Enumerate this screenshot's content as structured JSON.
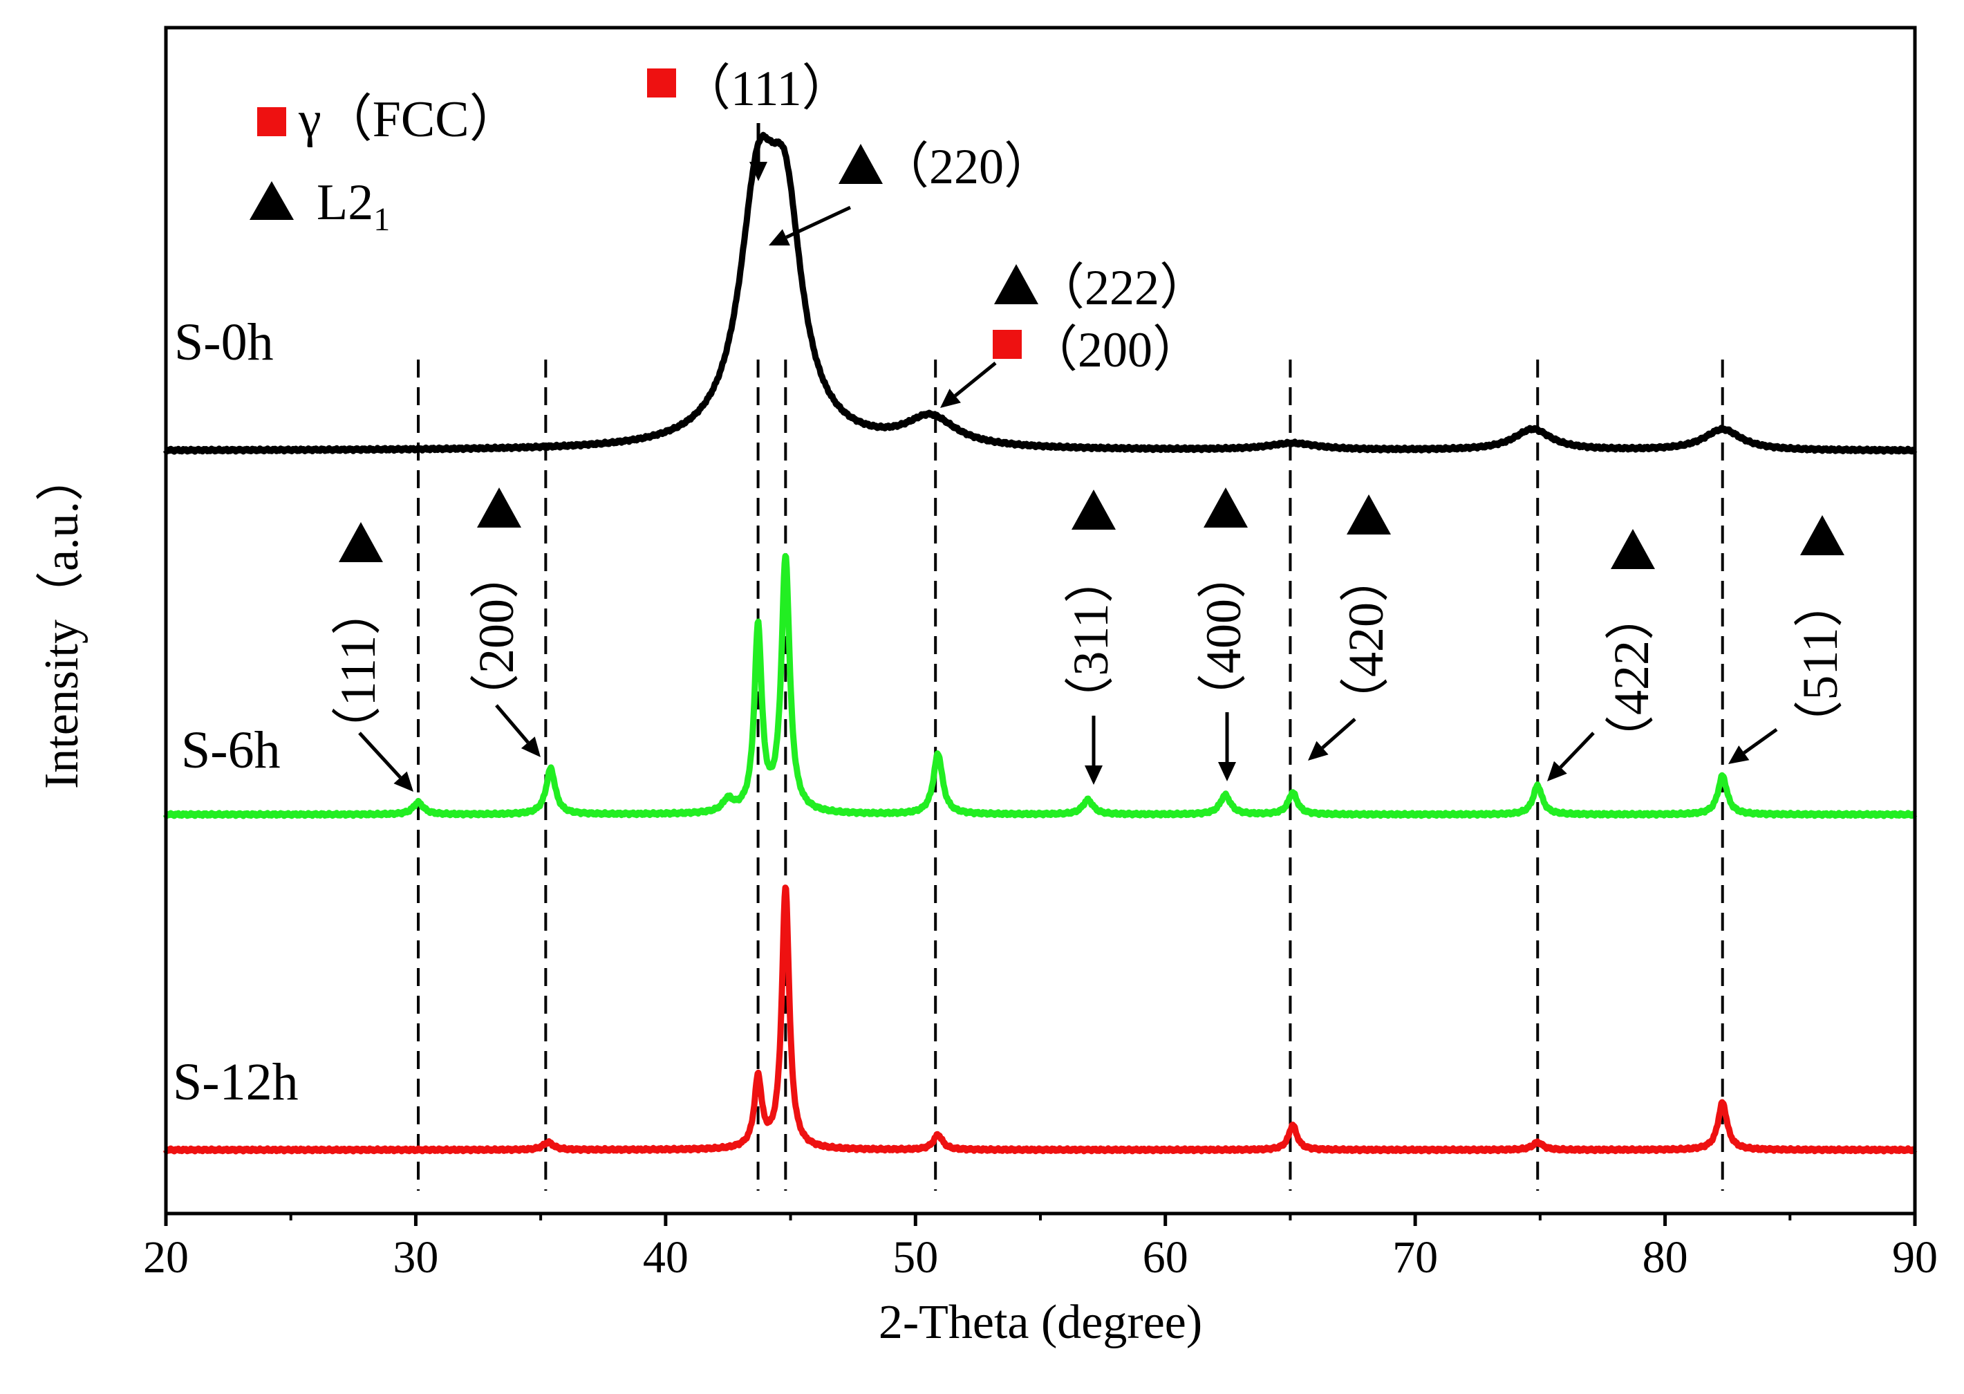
{
  "chart_data": {
    "type": "line",
    "title": "",
    "xlabel": "2-Theta (degree)",
    "ylabel": "Intensity（a.u.）",
    "xlim": [
      20,
      90
    ],
    "xticks": [
      20,
      30,
      40,
      50,
      60,
      70,
      80,
      90
    ],
    "yticks": [],
    "grid": false,
    "colors": {
      "S-0h": "#000000",
      "S-6h": "#22ee22",
      "S-12h": "#ee1111",
      "fcc_marker": "#ee1111",
      "l21_marker": "#000000"
    },
    "legend": {
      "placement": "top-left",
      "entries": [
        {
          "symbol": "square",
          "color": "#ee1111",
          "label": "γ（FCC）"
        },
        {
          "symbol": "triangle",
          "color": "#000000",
          "label": "L2",
          "subscript": "1"
        }
      ]
    },
    "series": [
      {
        "name": "S-0h",
        "label": "S-0h",
        "baseline": 0,
        "peaks": [
          {
            "x": 43.7,
            "h": 9.0,
            "w": 0.9
          },
          {
            "x": 44.8,
            "h": 7.6,
            "w": 0.8
          },
          {
            "x": 50.6,
            "h": 1.1,
            "w": 1.2
          },
          {
            "x": 65.1,
            "h": 0.25,
            "w": 1.2
          },
          {
            "x": 74.7,
            "h": 0.8,
            "w": 0.9
          },
          {
            "x": 82.3,
            "h": 0.8,
            "w": 0.9
          }
        ]
      },
      {
        "name": "S-6h",
        "label": "S-6h",
        "baseline": 0,
        "peaks": [
          {
            "x": 30.1,
            "h": 0.5,
            "w": 0.25
          },
          {
            "x": 35.4,
            "h": 1.9,
            "w": 0.22
          },
          {
            "x": 42.5,
            "h": 0.5,
            "w": 0.25
          },
          {
            "x": 43.7,
            "h": 7.6,
            "w": 0.18
          },
          {
            "x": 44.8,
            "h": 10.5,
            "w": 0.2
          },
          {
            "x": 50.9,
            "h": 2.5,
            "w": 0.22
          },
          {
            "x": 56.9,
            "h": 0.6,
            "w": 0.25
          },
          {
            "x": 62.4,
            "h": 0.8,
            "w": 0.25
          },
          {
            "x": 65.1,
            "h": 0.9,
            "w": 0.22
          },
          {
            "x": 74.9,
            "h": 1.2,
            "w": 0.22
          },
          {
            "x": 82.3,
            "h": 1.6,
            "w": 0.22
          }
        ]
      },
      {
        "name": "S-12h",
        "label": "S-12h",
        "baseline": 0,
        "peaks": [
          {
            "x": 35.3,
            "h": 0.3,
            "w": 0.25
          },
          {
            "x": 43.7,
            "h": 2.8,
            "w": 0.18
          },
          {
            "x": 44.8,
            "h": 10.5,
            "w": 0.18
          },
          {
            "x": 50.9,
            "h": 0.6,
            "w": 0.22
          },
          {
            "x": 65.1,
            "h": 1.0,
            "w": 0.2
          },
          {
            "x": 74.9,
            "h": 0.3,
            "w": 0.25
          },
          {
            "x": 82.3,
            "h": 1.9,
            "w": 0.22
          }
        ]
      }
    ],
    "reference_lines": [
      30.1,
      35.2,
      43.7,
      44.8,
      50.8,
      65.0,
      74.9,
      82.3
    ],
    "annotations": [
      {
        "phase": "FCC",
        "text": "（111）",
        "x": 43.7,
        "series": "S-0h"
      },
      {
        "phase": "L21",
        "text": "（220）",
        "x": 44.8,
        "series": "S-0h"
      },
      {
        "phase": "L21",
        "text": "（222）",
        "x": 50.6,
        "series": "S-0h"
      },
      {
        "phase": "FCC",
        "text": "（200）",
        "x": 50.6,
        "series": "S-0h"
      },
      {
        "phase": "L21",
        "text": "（111）",
        "x": 30.1,
        "series": "S-6h"
      },
      {
        "phase": "L21",
        "text": "（200）",
        "x": 35.4,
        "series": "S-6h"
      },
      {
        "phase": "L21",
        "text": "（311）",
        "x": 56.9,
        "series": "S-6h"
      },
      {
        "phase": "L21",
        "text": "（400）",
        "x": 62.4,
        "series": "S-6h"
      },
      {
        "phase": "L21",
        "text": "（420）",
        "x": 65.1,
        "series": "S-6h"
      },
      {
        "phase": "L21",
        "text": "（422）",
        "x": 74.9,
        "series": "S-6h"
      },
      {
        "phase": "L21",
        "text": "（511）",
        "x": 82.3,
        "series": "S-6h"
      }
    ]
  }
}
